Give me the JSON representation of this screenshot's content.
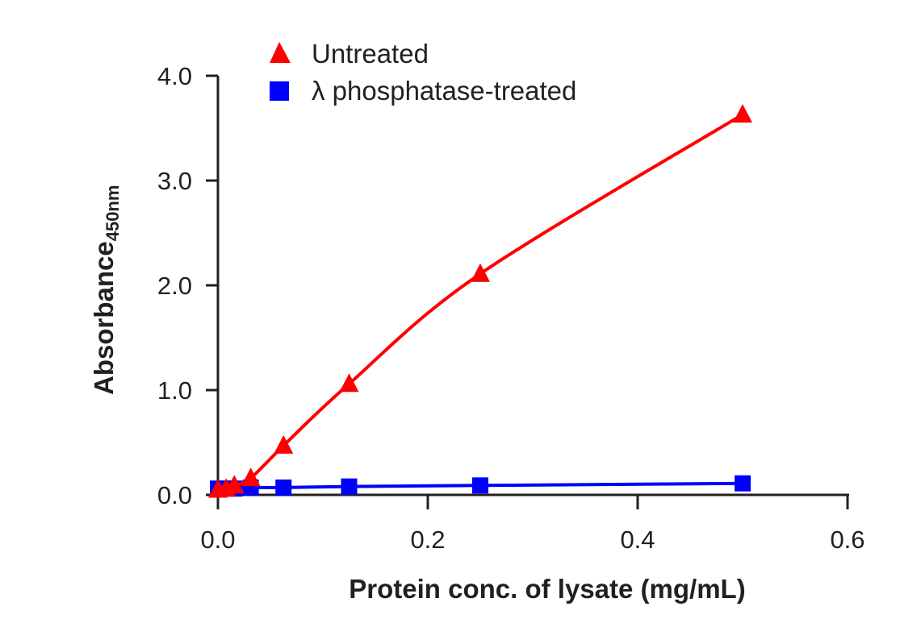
{
  "chart_data": {
    "type": "line",
    "title": "",
    "xlabel": "Protein conc. of lysate (mg/mL)",
    "ylabel": "Absorbance",
    "ylabel_subscript": "450nm",
    "xlim": [
      0,
      0.6
    ],
    "ylim": [
      0,
      4.0
    ],
    "xticks": [
      0.0,
      0.2,
      0.4,
      0.6
    ],
    "xtick_labels": [
      "0.0",
      "0.2",
      "0.4",
      "0.6"
    ],
    "yticks": [
      0.0,
      1.0,
      2.0,
      3.0,
      4.0
    ],
    "ytick_labels": [
      "0.0",
      "1.0",
      "2.0",
      "3.0",
      "4.0"
    ],
    "grid": false,
    "legend_position": "top-left (above plot)",
    "x": [
      0.0,
      0.0078,
      0.0156,
      0.03125,
      0.0625,
      0.125,
      0.25,
      0.5
    ],
    "series": [
      {
        "name": "Untreated",
        "marker": "triangle",
        "color": "#ff0000",
        "values": [
          0.05,
          0.06,
          0.09,
          0.16,
          0.47,
          1.06,
          2.11,
          3.63
        ]
      },
      {
        "name": "λ phosphatase-treated",
        "marker": "square",
        "color": "#0000ff",
        "values": [
          0.06,
          0.06,
          0.06,
          0.07,
          0.07,
          0.08,
          0.09,
          0.11
        ]
      }
    ]
  },
  "legend": {
    "items": [
      {
        "label": "Untreated",
        "color": "#ff0000",
        "marker": "triangle"
      },
      {
        "label": "λ phosphatase-treated",
        "color": "#0000ff",
        "marker": "square"
      }
    ]
  }
}
